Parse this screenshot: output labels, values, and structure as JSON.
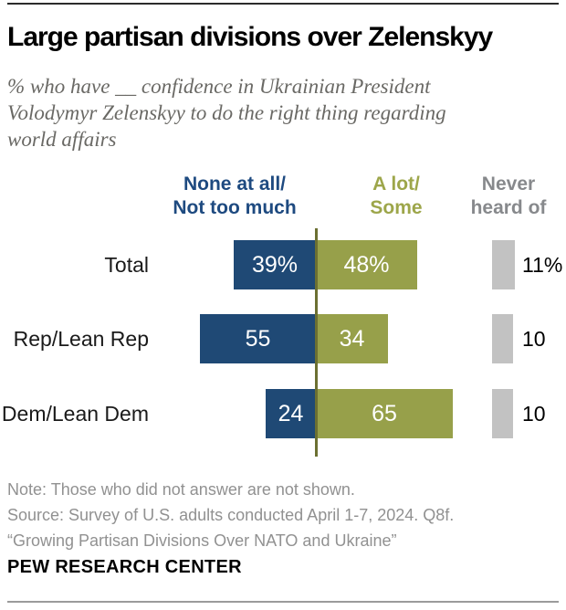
{
  "page": {
    "background": "#FFFFFF"
  },
  "header": {
    "title": "Large partisan divisions over Zelenskyy",
    "subtitle_lines": [
      "% who have __ confidence in Ukrainian President",
      "Volodymyr Zelenskyy to do the right thing regarding",
      "world affairs"
    ]
  },
  "chart_data": {
    "type": "bar",
    "orientation": "horizontal-diverging",
    "unit": "percent",
    "categories": [
      "Total",
      "Rep/Lean Rep",
      "Dem/Lean Dem"
    ],
    "series": [
      {
        "name": "None at all/Not too much",
        "position": "left-of-axis",
        "color": "#1F4975",
        "values": [
          39,
          55,
          24
        ],
        "display_labels": [
          "39%",
          "55",
          "24"
        ]
      },
      {
        "name": "A lot/Some",
        "position": "right-of-axis",
        "color": "#97A04A",
        "values": [
          48,
          34,
          65
        ],
        "display_labels": [
          "48%",
          "34",
          "65"
        ]
      },
      {
        "name": "Never heard of",
        "position": "detached-right",
        "color": "#C2C2C2",
        "values": [
          11,
          10,
          10
        ],
        "display_labels": [
          "11%",
          "10",
          "10"
        ]
      }
    ],
    "column_headers": [
      {
        "lines": [
          "None at all/",
          "Not too much"
        ],
        "color": "#1E4A80"
      },
      {
        "lines": [
          "A lot/",
          "Some"
        ],
        "color": "#9DA64A"
      },
      {
        "lines": [
          "Never",
          "heard of"
        ],
        "color": "#87898C"
      }
    ],
    "axis_color": "#6C7032",
    "value_label_color": "#FFFFFF",
    "legend_position": "column-headers-top",
    "grid": false
  },
  "footer": {
    "note_lines": [
      "Note: Those who did not answer are not shown.",
      "Source: Survey of U.S. adults conducted April 1-7, 2024. Q8f.",
      "“Growing Partisan Divisions Over NATO and Ukraine”"
    ],
    "brand": "PEW RESEARCH CENTER"
  }
}
